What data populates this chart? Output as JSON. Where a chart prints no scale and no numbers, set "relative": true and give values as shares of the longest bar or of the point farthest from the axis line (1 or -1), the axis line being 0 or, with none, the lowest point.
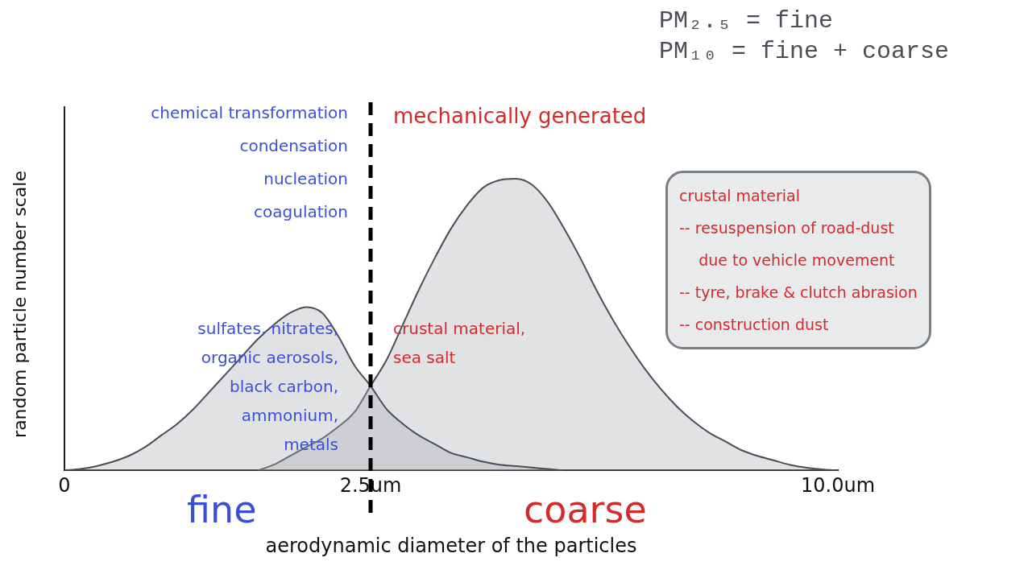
{
  "chart_data": {
    "type": "area",
    "relative": true,
    "xlabel": "aerodynamic diameter of the particles",
    "ylabel": "random particle number scale",
    "categories": [
      "0",
      null,
      null,
      null,
      null,
      null,
      null,
      null,
      null,
      null,
      null,
      null,
      null,
      null,
      null,
      null,
      null,
      null,
      null,
      "2.5um",
      null,
      null,
      null,
      null,
      null,
      null,
      null,
      null,
      null,
      null,
      null,
      null,
      null,
      null,
      null,
      null,
      null,
      null,
      null,
      null,
      null,
      null,
      null,
      null,
      null,
      null,
      null,
      null,
      "10.0um"
    ],
    "series": [
      {
        "color": "#4a4f57",
        "values": [
          0,
          0.005,
          0.015,
          0.03,
          0.05,
          0.08,
          0.12,
          0.16,
          0.21,
          0.27,
          0.33,
          0.39,
          0.45,
          0.5,
          0.54,
          0.56,
          0.54,
          0.46,
          0.36,
          0.29,
          0.21,
          0.16,
          0.12,
          0.09,
          0.06,
          0.045,
          0.03,
          0.02,
          0.015,
          0.01,
          0.005,
          0,
          null,
          null,
          null,
          null,
          null,
          null,
          null,
          null,
          null,
          null,
          null,
          null,
          null,
          null,
          null,
          null,
          null
        ]
      },
      {
        "color": "#4a4f57",
        "values": [
          null,
          null,
          null,
          null,
          null,
          null,
          null,
          null,
          null,
          null,
          null,
          null,
          0,
          0.02,
          0.05,
          0.08,
          0.11,
          0.15,
          0.2,
          0.29,
          0.38,
          0.5,
          0.62,
          0.73,
          0.83,
          0.91,
          0.97,
          0.995,
          1,
          0.98,
          0.92,
          0.83,
          0.73,
          0.62,
          0.52,
          0.43,
          0.35,
          0.28,
          0.22,
          0.17,
          0.13,
          0.1,
          0.07,
          0.05,
          0.035,
          0.02,
          0.01,
          0.004,
          0
        ]
      }
    ],
    "ref_lines": [
      {
        "axis": "x",
        "value": "2.5um",
        "color": "#000000",
        "line_style": "dashed"
      }
    ],
    "annotations": [
      "PM₂.₅ = fine",
      "PM₁₀ = fine + coarse",
      "chemical transformation\ncondensation\nnucleation\ncoagulation",
      "mechanically generated",
      "sulfates, nitrates,\norganic aerosols,\nblack carbon,\nammonium,\nmetals",
      "crustal material,\nsea salt",
      "crustal material\n-- resuspension of road-dust\n    due to vehicle movement\n-- tyre, brake & clutch abrasion\n-- construction dust",
      "fine",
      "coarse"
    ],
    "grid": false,
    "legend": false
  }
}
